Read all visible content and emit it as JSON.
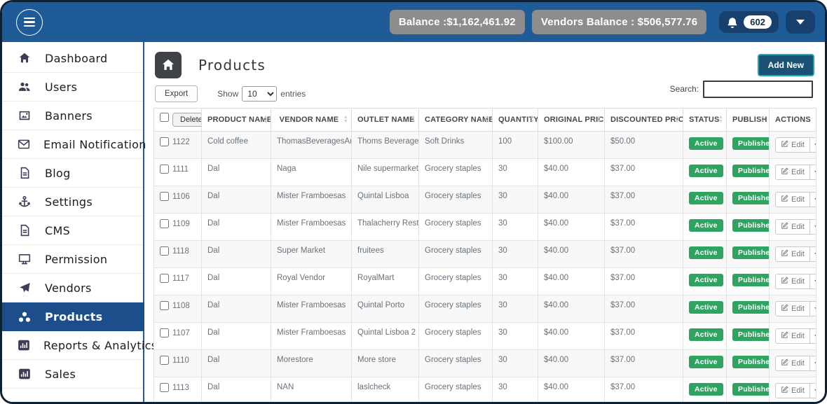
{
  "topbar": {
    "balance_label": "Balance :$1,162,461.92",
    "vendors_balance_label": "Vendors Balance : $506,577.76",
    "notification_count": "602"
  },
  "sidebar": {
    "items": [
      {
        "label": "Dashboard",
        "icon": "home",
        "active": false
      },
      {
        "label": "Users",
        "icon": "users",
        "active": false
      },
      {
        "label": "Banners",
        "icon": "image",
        "active": false
      },
      {
        "label": "Email Notification",
        "icon": "envelope",
        "active": false
      },
      {
        "label": "Blog",
        "icon": "file",
        "active": false
      },
      {
        "label": "Settings",
        "icon": "anchor",
        "active": false
      },
      {
        "label": "CMS",
        "icon": "file",
        "active": false
      },
      {
        "label": "Permission",
        "icon": "desktop",
        "active": false
      },
      {
        "label": "Vendors",
        "icon": "paper-plane",
        "active": false
      },
      {
        "label": "Products",
        "icon": "cubes",
        "active": true
      },
      {
        "label": "Reports & Analytics",
        "icon": "chart",
        "active": false
      },
      {
        "label": "Sales",
        "icon": "chart",
        "active": false
      }
    ]
  },
  "header": {
    "title": "Products",
    "add_new_label": "Add New"
  },
  "controls": {
    "export_label": "Export",
    "show_label": "Show",
    "entries_label": "entries",
    "page_size": "10",
    "search_label": "Search:",
    "search_value": ""
  },
  "table": {
    "delete_label": "Delete",
    "edit_label": "Edit",
    "columns": [
      {
        "label": "PRODUCT NAME",
        "sortable": true
      },
      {
        "label": "VENDOR NAME",
        "sortable": true
      },
      {
        "label": "OUTLET NAME",
        "sortable": true
      },
      {
        "label": "CATEGORY NAME",
        "sortable": true
      },
      {
        "label": "QUANTITY",
        "sortable": true
      },
      {
        "label": "ORIGINAL PRICE",
        "sortable": true
      },
      {
        "label": "DISCOUNTED PRICE",
        "sortable": true
      },
      {
        "label": "STATUS",
        "sortable": true
      },
      {
        "label": "PUBLISH",
        "sortable": true
      },
      {
        "label": "ACTIONS",
        "sortable": false
      }
    ],
    "rows": [
      {
        "id": "1122",
        "product": "Cold coffee",
        "vendor": "ThomasBeveragesAndCo",
        "outlet": "Thoms Beverages",
        "category": "Soft Drinks",
        "quantity": "100",
        "original_price": "$100.00",
        "discounted_price": "$50.00",
        "status": "Active",
        "publish": "Published"
      },
      {
        "id": "1111",
        "product": "Dal",
        "vendor": "Naga",
        "outlet": "Nile supermarket tuti",
        "category": "Grocery staples",
        "quantity": "30",
        "original_price": "$40.00",
        "discounted_price": "$37.00",
        "status": "Active",
        "publish": "Published"
      },
      {
        "id": "1106",
        "product": "Dal",
        "vendor": "Mister Framboesas",
        "outlet": "Quintal Lisboa",
        "category": "Grocery staples",
        "quantity": "30",
        "original_price": "$40.00",
        "discounted_price": "$37.00",
        "status": "Active",
        "publish": "Published"
      },
      {
        "id": "1109",
        "product": "Dal",
        "vendor": "Mister Framboesas",
        "outlet": "Thalacherry Restaurant",
        "category": "Grocery staples",
        "quantity": "30",
        "original_price": "$40.00",
        "discounted_price": "$37.00",
        "status": "Active",
        "publish": "Published"
      },
      {
        "id": "1118",
        "product": "Dal",
        "vendor": "Super Market",
        "outlet": "fruitees",
        "category": "Grocery staples",
        "quantity": "30",
        "original_price": "$40.00",
        "discounted_price": "$37.00",
        "status": "Active",
        "publish": "Published"
      },
      {
        "id": "1117",
        "product": "Dal",
        "vendor": "Royal Vendor",
        "outlet": "RoyalMart",
        "category": "Grocery staples",
        "quantity": "30",
        "original_price": "$40.00",
        "discounted_price": "$37.00",
        "status": "Active",
        "publish": "Published"
      },
      {
        "id": "1108",
        "product": "Dal",
        "vendor": "Mister Framboesas",
        "outlet": "Quintal Porto",
        "category": "Grocery staples",
        "quantity": "30",
        "original_price": "$40.00",
        "discounted_price": "$37.00",
        "status": "Active",
        "publish": "Published"
      },
      {
        "id": "1107",
        "product": "Dal",
        "vendor": "Mister Framboesas",
        "outlet": "Quintal Lisboa 2",
        "category": "Grocery staples",
        "quantity": "30",
        "original_price": "$40.00",
        "discounted_price": "$37.00",
        "status": "Active",
        "publish": "Published"
      },
      {
        "id": "1110",
        "product": "Dal",
        "vendor": "Morestore",
        "outlet": "More store",
        "category": "Grocery staples",
        "quantity": "30",
        "original_price": "$40.00",
        "discounted_price": "$37.00",
        "status": "Active",
        "publish": "Published"
      },
      {
        "id": "1113",
        "product": "Dal",
        "vendor": "NAN",
        "outlet": "laslcheck",
        "category": "Grocery staples",
        "quantity": "30",
        "original_price": "$40.00",
        "discounted_price": "$37.00",
        "status": "Active",
        "publish": "Published"
      }
    ]
  },
  "colors": {
    "navbar_blue": "#1e5b97",
    "active_item_blue": "#1c4e8c",
    "frame_border": "#0c2134",
    "chip_gray": "#8d8d8d",
    "navy_chip": "#17406f",
    "badge_green": "#2fa360",
    "add_new_fill": "#1a5276",
    "add_new_border": "#24a6b5",
    "home_button_gray": "#3f4247"
  }
}
